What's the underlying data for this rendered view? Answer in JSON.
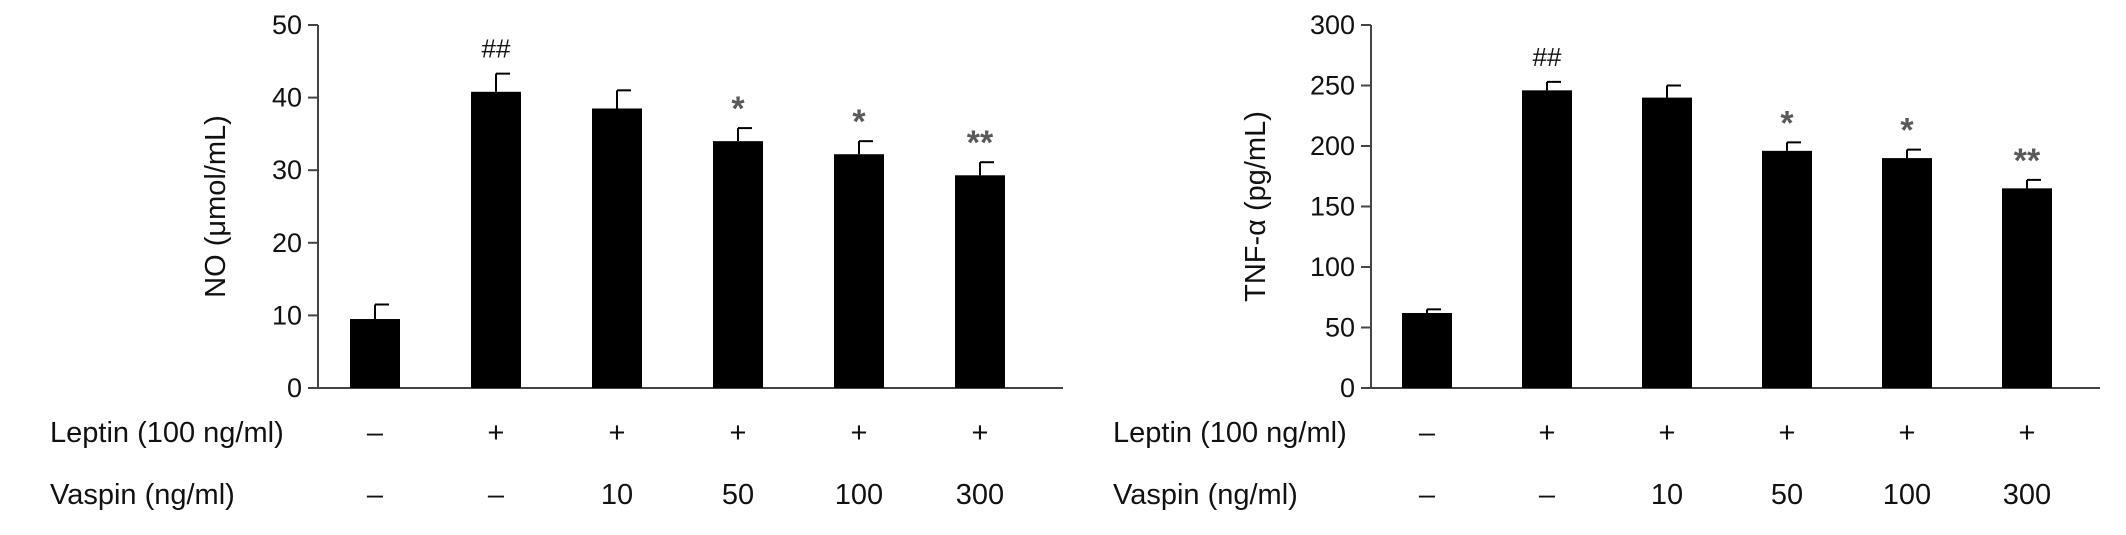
{
  "chart_data": [
    {
      "type": "bar",
      "ylabel": "NO (μmol/mL)",
      "ylim": [
        0,
        50
      ],
      "yticks": [
        0,
        10,
        20,
        30,
        40,
        50
      ],
      "groups": [
        "1",
        "2",
        "3",
        "4",
        "5",
        "6"
      ],
      "values": [
        9.5,
        40.8,
        38.5,
        34.0,
        32.2,
        29.3
      ],
      "errors": [
        2.0,
        2.5,
        2.5,
        1.8,
        1.8,
        1.8
      ],
      "annotations": [
        "",
        "##",
        "",
        "*",
        "*",
        "**"
      ],
      "condition_rows": [
        {
          "label": "Leptin (100 ng/ml)",
          "values": [
            "–",
            "+",
            "+",
            "+",
            "+",
            "+"
          ]
        },
        {
          "label": "Vaspin (ng/ml)",
          "values": [
            "–",
            "–",
            "10",
            "50",
            "100",
            "300"
          ]
        }
      ]
    },
    {
      "type": "bar",
      "ylabel": "TNF-α (pg/mL)",
      "ylim": [
        0,
        300
      ],
      "yticks": [
        0,
        50,
        100,
        150,
        200,
        250,
        300
      ],
      "groups": [
        "1",
        "2",
        "3",
        "4",
        "5",
        "6"
      ],
      "values": [
        62,
        246,
        240,
        196,
        190,
        165
      ],
      "errors": [
        3,
        7,
        10,
        7,
        7,
        7
      ],
      "annotations": [
        "",
        "##",
        "",
        "*",
        "*",
        "**"
      ],
      "condition_rows": [
        {
          "label": "Leptin (100 ng/ml)",
          "values": [
            "–",
            "+",
            "+",
            "+",
            "+",
            "+"
          ]
        },
        {
          "label": "Vaspin (ng/ml)",
          "values": [
            "–",
            "–",
            "10",
            "50",
            "100",
            "300"
          ]
        }
      ]
    }
  ],
  "colors": {
    "bar": "#000000",
    "axis": "#444444",
    "star": "#5a5a5a",
    "text": "#111111"
  }
}
